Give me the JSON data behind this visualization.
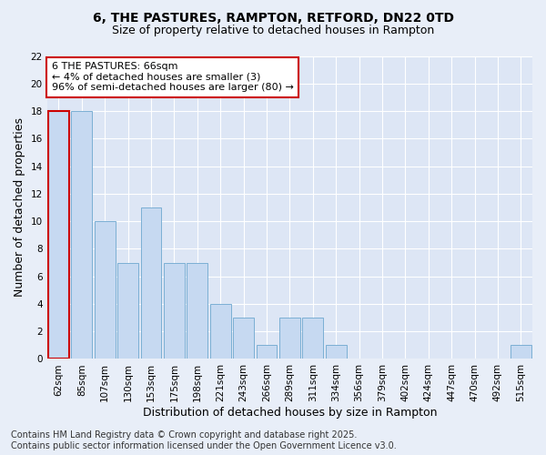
{
  "title_line1": "6, THE PASTURES, RAMPTON, RETFORD, DN22 0TD",
  "title_line2": "Size of property relative to detached houses in Rampton",
  "xlabel": "Distribution of detached houses by size in Rampton",
  "ylabel": "Number of detached properties",
  "categories": [
    "62sqm",
    "85sqm",
    "107sqm",
    "130sqm",
    "153sqm",
    "175sqm",
    "198sqm",
    "221sqm",
    "243sqm",
    "266sqm",
    "289sqm",
    "311sqm",
    "334sqm",
    "356sqm",
    "379sqm",
    "402sqm",
    "424sqm",
    "447sqm",
    "470sqm",
    "492sqm",
    "515sqm"
  ],
  "values": [
    18,
    18,
    10,
    7,
    11,
    7,
    7,
    4,
    3,
    1,
    3,
    3,
    1,
    0,
    0,
    0,
    0,
    0,
    0,
    0,
    1
  ],
  "bar_color": "#c6d9f1",
  "bar_edge_color": "#7bafd4",
  "highlight_bar_index": 0,
  "highlight_edge_color": "#cc0000",
  "annotation_text_line1": "6 THE PASTURES: 66sqm",
  "annotation_text_line2": "← 4% of detached houses are smaller (3)",
  "annotation_text_line3": "96% of semi-detached houses are larger (80) →",
  "annotation_box_color": "#ffffff",
  "annotation_box_edge_color": "#cc0000",
  "ylim": [
    0,
    22
  ],
  "yticks": [
    0,
    2,
    4,
    6,
    8,
    10,
    12,
    14,
    16,
    18,
    20,
    22
  ],
  "footer_line1": "Contains HM Land Registry data © Crown copyright and database right 2025.",
  "footer_line2": "Contains public sector information licensed under the Open Government Licence v3.0.",
  "background_color": "#e8eef8",
  "plot_background_color": "#dde6f5",
  "grid_color": "#ffffff",
  "title_fontsize": 10,
  "subtitle_fontsize": 9,
  "axis_label_fontsize": 9,
  "tick_fontsize": 7.5,
  "annotation_fontsize": 8,
  "footer_fontsize": 7
}
